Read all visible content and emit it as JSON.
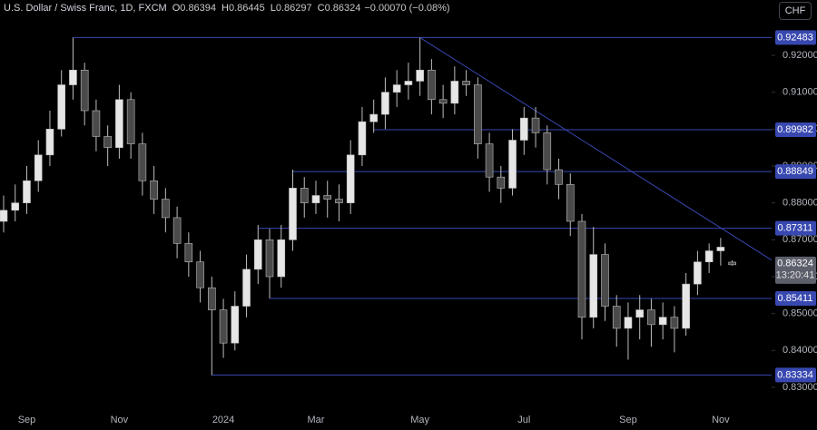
{
  "chart_data": {
    "type": "candlestick",
    "header": {
      "title": "U.S. Dollar / Swiss Franc, 1D, FXCM",
      "fields": [
        {
          "key": "O",
          "value": "0.86394"
        },
        {
          "key": "H",
          "value": "0.86445"
        },
        {
          "key": "L",
          "value": "0.86297"
        },
        {
          "key": "C",
          "value": "0.86324"
        }
      ],
      "change": "−0.00070 (−0.08%)"
    },
    "currency": "CHF",
    "countdown": "13:20:41",
    "categories": [
      null,
      null,
      "Sep",
      null,
      null,
      null,
      null,
      null,
      null,
      null,
      "Nov",
      null,
      null,
      null,
      null,
      null,
      null,
      null,
      null,
      "2024",
      null,
      null,
      null,
      null,
      null,
      null,
      null,
      "Mar",
      null,
      null,
      null,
      null,
      null,
      null,
      null,
      null,
      "May",
      null,
      null,
      null,
      null,
      null,
      null,
      null,
      null,
      "Jul",
      null,
      null,
      null,
      null,
      null,
      null,
      null,
      null,
      "Sep",
      null,
      null,
      null,
      null,
      null,
      null,
      null,
      "Nov",
      null
    ],
    "open": [
      0.875,
      0.878,
      0.88,
      0.886,
      0.893,
      0.9,
      0.912,
      0.916,
      0.905,
      0.898,
      0.895,
      0.908,
      0.896,
      0.886,
      0.881,
      0.876,
      0.869,
      0.864,
      0.857,
      0.851,
      0.842,
      0.852,
      0.862,
      0.87,
      0.86,
      0.87,
      0.884,
      0.88,
      0.882,
      0.881,
      0.88,
      0.893,
      0.902,
      0.904,
      0.91,
      0.912,
      0.913,
      0.916,
      0.908,
      0.907,
      0.913,
      0.912,
      0.896,
      0.887,
      0.884,
      0.897,
      0.903,
      0.899,
      0.889,
      0.885,
      0.875,
      0.849,
      0.866,
      0.852,
      0.846,
      0.849,
      0.851,
      0.847,
      0.849,
      0.846,
      0.858,
      0.864,
      0.867,
      0.86394
    ],
    "high": [
      0.882,
      0.885,
      0.89,
      0.897,
      0.905,
      0.916,
      0.9248,
      0.918,
      0.908,
      0.901,
      0.912,
      0.91,
      0.899,
      0.89,
      0.884,
      0.879,
      0.872,
      0.867,
      0.86,
      0.854,
      0.856,
      0.866,
      0.874,
      0.873,
      0.874,
      0.889,
      0.887,
      0.886,
      0.886,
      0.885,
      0.897,
      0.906,
      0.908,
      0.914,
      0.916,
      0.918,
      0.9248,
      0.919,
      0.912,
      0.917,
      0.916,
      0.914,
      0.899,
      0.89,
      0.9,
      0.906,
      0.906,
      0.901,
      0.892,
      0.888,
      0.877,
      0.8735,
      0.869,
      0.855,
      0.853,
      0.855,
      0.854,
      0.853,
      0.852,
      0.861,
      0.867,
      0.869,
      0.8705,
      0.86445
    ],
    "low": [
      0.872,
      0.875,
      0.877,
      0.883,
      0.89,
      0.898,
      0.908,
      0.901,
      0.894,
      0.89,
      0.892,
      0.892,
      0.882,
      0.877,
      0.872,
      0.865,
      0.86,
      0.853,
      0.8333,
      0.838,
      0.84,
      0.849,
      0.858,
      0.8541,
      0.857,
      0.867,
      0.876,
      0.877,
      0.876,
      0.875,
      0.877,
      0.89,
      0.899,
      0.9,
      0.906,
      0.908,
      0.909,
      0.904,
      0.903,
      0.904,
      0.909,
      0.892,
      0.883,
      0.88,
      0.882,
      0.893,
      0.895,
      0.885,
      0.881,
      0.871,
      0.843,
      0.846,
      0.848,
      0.841,
      0.8375,
      0.843,
      0.841,
      0.843,
      0.8395,
      0.844,
      0.855,
      0.861,
      0.863,
      0.86297
    ],
    "close": [
      0.878,
      0.88,
      0.886,
      0.893,
      0.9,
      0.912,
      0.916,
      0.905,
      0.898,
      0.895,
      0.908,
      0.896,
      0.886,
      0.881,
      0.876,
      0.869,
      0.864,
      0.857,
      0.851,
      0.842,
      0.852,
      0.862,
      0.87,
      0.86,
      0.87,
      0.884,
      0.88,
      0.882,
      0.881,
      0.88,
      0.893,
      0.902,
      0.904,
      0.91,
      0.912,
      0.913,
      0.916,
      0.908,
      0.907,
      0.913,
      0.912,
      0.896,
      0.887,
      0.884,
      0.897,
      0.903,
      0.899,
      0.889,
      0.885,
      0.875,
      0.849,
      0.866,
      0.852,
      0.846,
      0.849,
      0.851,
      0.847,
      0.849,
      0.846,
      0.858,
      0.864,
      0.867,
      0.868,
      0.86324
    ],
    "up_color": "#e6e6e6",
    "down_color": "#4a4a4a",
    "level_color": "#3848b0",
    "levels": [
      0.92483,
      0.89982,
      0.88849,
      0.87311,
      0.85411,
      0.83334
    ],
    "trendline": [
      0.9248,
      0.8645
    ],
    "ylim": [
      0.82434,
      0.935
    ],
    "yticks": [
      {
        "value": 0.83,
        "label": "0.83000"
      },
      {
        "value": 0.84,
        "label": "0.84000"
      },
      {
        "value": 0.85,
        "label": "0.85000"
      },
      {
        "value": 0.86,
        "label": "0.86000"
      },
      {
        "value": 0.87,
        "label": "0.87000"
      },
      {
        "value": 0.88,
        "label": "0.88000"
      },
      {
        "value": 0.89,
        "label": "0.89000"
      },
      {
        "value": 0.9,
        "label": "0.90000"
      },
      {
        "value": 0.91,
        "label": "0.91000"
      },
      {
        "value": 0.92,
        "label": "0.92000"
      }
    ],
    "grid": false
  }
}
